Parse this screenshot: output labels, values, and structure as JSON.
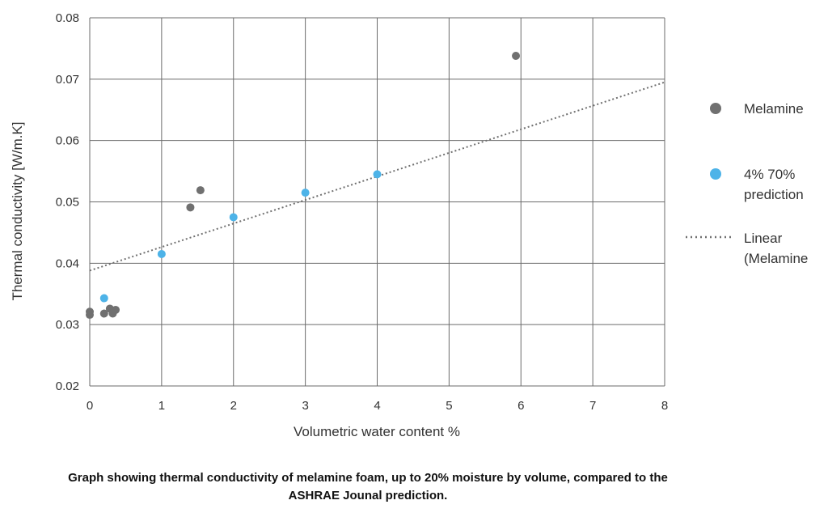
{
  "caption": "Graph showing thermal conductivity of melamine foam, up to 20% moisture by volume, compared to the ASHRAE Jounal prediction.",
  "chart_data": {
    "type": "scatter",
    "title": "",
    "xlabel": "Volumetric water content %",
    "ylabel": "Thermal conductivity [W/m.K]",
    "xlim": [
      0,
      8
    ],
    "ylim": [
      0.02,
      0.08
    ],
    "x_ticks": [
      "0",
      "1",
      "2",
      "3",
      "4",
      "5",
      "6",
      "7",
      "8"
    ],
    "y_ticks": [
      "0.02",
      "0.03",
      "0.04",
      "0.05",
      "0.06",
      "0.07",
      "0.08"
    ],
    "grid": true,
    "legend_position": "right",
    "series": [
      {
        "name": "Melamine",
        "color": "#707070",
        "marker": "circle",
        "points": [
          [
            0,
            0.0316
          ],
          [
            0,
            0.0321
          ],
          [
            0.2,
            0.0318
          ],
          [
            0.28,
            0.0326
          ],
          [
            0.32,
            0.0318
          ],
          [
            0.36,
            0.0324
          ],
          [
            1.4,
            0.0491
          ],
          [
            1.54,
            0.0519
          ],
          [
            5.93,
            0.0738
          ]
        ]
      },
      {
        "name": "4% 70% prediction",
        "color": "#4db3e8",
        "marker": "circle",
        "points": [
          [
            0.2,
            0.0343
          ],
          [
            1.0,
            0.0415
          ],
          [
            2.0,
            0.0475
          ],
          [
            3.0,
            0.0515
          ],
          [
            4.0,
            0.0545
          ]
        ]
      }
    ],
    "trendline": {
      "name": "Linear (Melamine",
      "type": "linear",
      "color": "#707070",
      "style": "dotted",
      "from": [
        0,
        0.0388
      ],
      "to": [
        8,
        0.0695
      ]
    },
    "legend": [
      {
        "label_lines": [
          "Melamine"
        ],
        "kind": "marker",
        "color": "#707070"
      },
      {
        "label_lines": [
          "4% 70%",
          "prediction"
        ],
        "kind": "marker",
        "color": "#4db3e8"
      },
      {
        "label_lines": [
          "Linear",
          "(Melamine"
        ],
        "kind": "dotted-line",
        "color": "#707070"
      }
    ]
  }
}
